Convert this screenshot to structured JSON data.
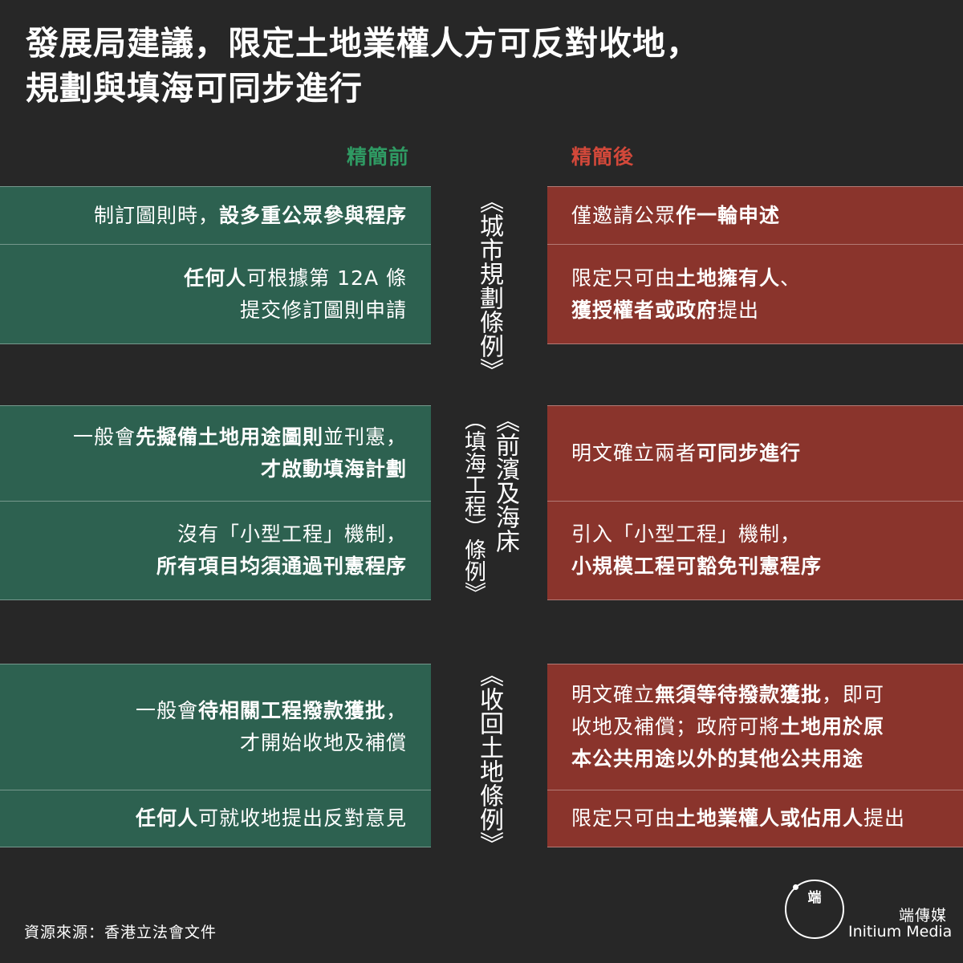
{
  "title": {
    "line1": "發展局建議，限定土地業權人方可反對收地，",
    "line2": "規劃與填海可同步進行"
  },
  "headers": {
    "before": "精簡前",
    "after": "精簡後"
  },
  "sections": [
    {
      "ordinance": "《城市規劃條例》",
      "rows": [
        {
          "before": [
            [
              {
                "t": "制訂圖則時，"
              },
              {
                "t": "設多重公眾參與程序",
                "b": true
              }
            ]
          ],
          "after": [
            [
              {
                "t": "僅邀請公眾"
              },
              {
                "t": "作一輪申述",
                "b": true
              }
            ]
          ]
        },
        {
          "before": [
            [
              {
                "t": "任何人",
                "b": true
              },
              {
                "t": "可根據第 12A 條"
              }
            ],
            [
              {
                "t": "提交修訂圖則申請"
              }
            ]
          ],
          "after": [
            [
              {
                "t": "限定只可由"
              },
              {
                "t": "土地擁有人",
                "b": true
              },
              {
                "t": "、"
              }
            ],
            [
              {
                "t": "獲授權者或政府",
                "b": true
              },
              {
                "t": "提出"
              }
            ]
          ]
        }
      ]
    },
    {
      "ordinance": "《前濱及海床",
      "ordinance2": "（填海工程）條例》",
      "rows": [
        {
          "before": [
            [
              {
                "t": "一般會"
              },
              {
                "t": "先擬備土地用途圖則",
                "b": true
              },
              {
                "t": "並刊憲，"
              }
            ],
            [
              {
                "t": "才啟動填海計劃",
                "b": true
              }
            ]
          ],
          "after": [
            [
              {
                "t": "明文確立兩者"
              },
              {
                "t": "可同步進行",
                "b": true
              }
            ]
          ]
        },
        {
          "before": [
            [
              {
                "t": "沒有「小型工程」機制，"
              }
            ],
            [
              {
                "t": "所有項目均須通過刊憲程序",
                "b": true
              }
            ]
          ],
          "after": [
            [
              {
                "t": "引入「小型工程」機制，"
              }
            ],
            [
              {
                "t": "小規模工程可豁免刊憲程序",
                "b": true
              }
            ]
          ]
        }
      ]
    },
    {
      "ordinance": "《收回土地條例》",
      "rows": [
        {
          "before": [
            [
              {
                "t": "一般會"
              },
              {
                "t": "待相關工程撥款獲批",
                "b": true
              },
              {
                "t": "，"
              }
            ],
            [
              {
                "t": "才開始收地及補償"
              }
            ]
          ],
          "after": [
            [
              {
                "t": "明文確立"
              },
              {
                "t": "無須等待撥款獲批",
                "b": true
              },
              {
                "t": "，即可"
              }
            ],
            [
              {
                "t": "收地及補償；政府可將"
              },
              {
                "t": "土地用於原",
                "b": true
              }
            ],
            [
              {
                "t": "本公共用途以外的其他公共用途",
                "b": true
              }
            ]
          ]
        },
        {
          "before": [
            [
              {
                "t": "任何人",
                "b": true
              },
              {
                "t": "可就收地提出反對意見"
              }
            ]
          ],
          "after": [
            [
              {
                "t": "限定只可由"
              },
              {
                "t": "土地業權人或佔用人",
                "b": true
              },
              {
                "t": "提出"
              }
            ]
          ]
        }
      ]
    }
  ],
  "source": "資源來源：香港立法會文件",
  "brand": {
    "logo_glyph": "端",
    "name_cn": "端傳媒",
    "name_en": "Initium Media"
  }
}
